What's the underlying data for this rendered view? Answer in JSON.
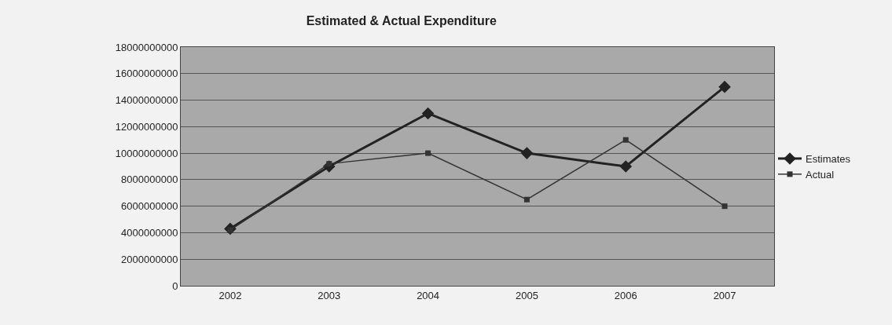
{
  "chart_data": {
    "type": "line",
    "title": "Estimated & Actual Expenditure",
    "categories": [
      "2002",
      "2003",
      "2004",
      "2005",
      "2006",
      "2007"
    ],
    "series": [
      {
        "name": "Estimates",
        "color": "#222222",
        "marker": "diamond",
        "values": [
          4300000000,
          9000000000,
          13000000000,
          10000000000,
          9000000000,
          15000000000
        ]
      },
      {
        "name": "Actual",
        "color": "#333333",
        "marker": "square",
        "values": [
          4200000000,
          9200000000,
          10000000000,
          6500000000,
          11000000000,
          6000000000
        ]
      }
    ],
    "ylim": [
      0,
      18000000000
    ],
    "yticks": [
      0,
      2000000000,
      4000000000,
      6000000000,
      8000000000,
      10000000000,
      12000000000,
      14000000000,
      16000000000,
      18000000000
    ],
    "grid": "y",
    "legend": "right",
    "line_style": "solid"
  }
}
